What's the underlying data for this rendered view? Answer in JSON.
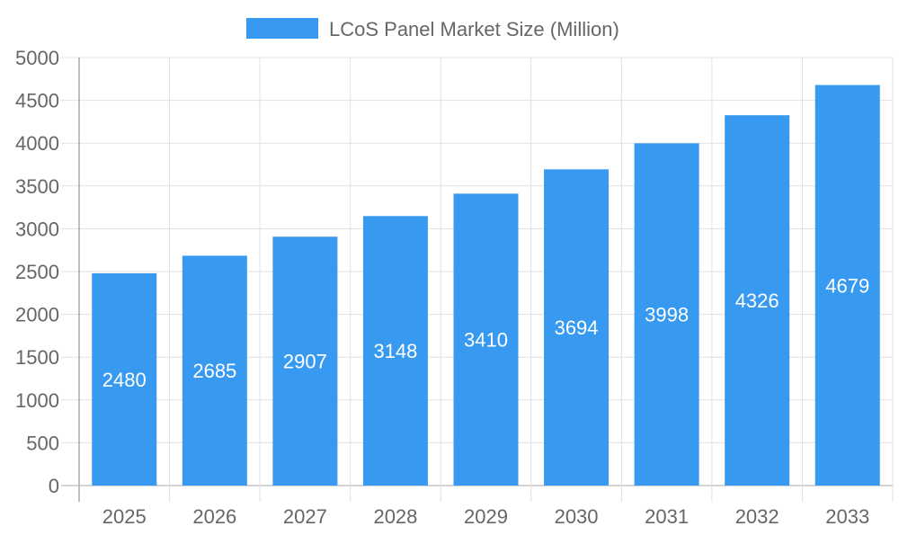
{
  "chart_data": {
    "type": "bar",
    "title": "",
    "xlabel": "",
    "ylabel": "",
    "categories": [
      "2025",
      "2026",
      "2027",
      "2028",
      "2029",
      "2030",
      "2031",
      "2032",
      "2033"
    ],
    "series": [
      {
        "name": "LCoS Panel Market Size (Million)",
        "values": [
          2480,
          2685,
          2907,
          3148,
          3410,
          3694,
          3998,
          4326,
          4679
        ],
        "color": "#3799ef"
      }
    ],
    "ylim": [
      0,
      5000
    ],
    "yticks": [
      0,
      500,
      1000,
      1500,
      2000,
      2500,
      3000,
      3500,
      4000,
      4500,
      5000
    ],
    "grid": true,
    "legend_position": "top",
    "data_labels": "inside-center",
    "data_label_color": "#ffffff"
  }
}
